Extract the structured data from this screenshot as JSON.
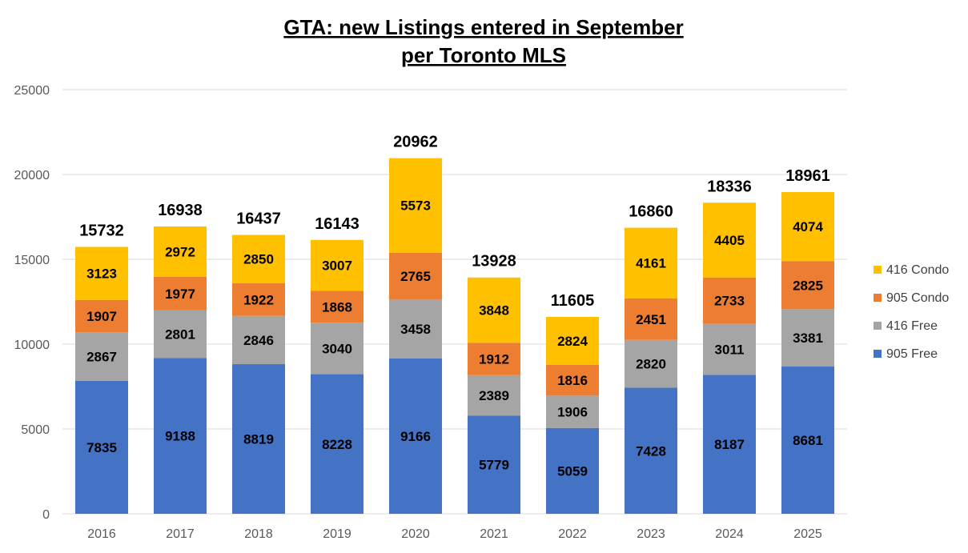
{
  "chart_data": {
    "type": "bar",
    "stacked": true,
    "title": "GTA: new Listings entered in September",
    "subtitle": "per Toronto MLS",
    "xlabel": "",
    "ylabel": "",
    "ylim": [
      0,
      25000
    ],
    "yticks": [
      0,
      5000,
      10000,
      15000,
      20000,
      25000
    ],
    "grid": true,
    "legend_position": "right",
    "categories": [
      "2016",
      "2017",
      "2018",
      "2019",
      "2020",
      "2021",
      "2022",
      "2023",
      "2024",
      "2025"
    ],
    "series": [
      {
        "name": "905 Free",
        "color": "#4472C4",
        "values": [
          7835,
          9188,
          8819,
          8228,
          9166,
          5779,
          5059,
          7428,
          8187,
          8681
        ]
      },
      {
        "name": "416 Free",
        "color": "#A5A5A5",
        "values": [
          2867,
          2801,
          2846,
          3040,
          3458,
          2389,
          1906,
          2820,
          3011,
          3381
        ]
      },
      {
        "name": "905 Condo",
        "color": "#ED7D31",
        "values": [
          1907,
          1977,
          1922,
          1868,
          2765,
          1912,
          1816,
          2451,
          2733,
          2825
        ]
      },
      {
        "name": "416 Condo",
        "color": "#FFC000",
        "values": [
          3123,
          2972,
          2850,
          3007,
          5573,
          3848,
          2824,
          4161,
          4405,
          4074
        ]
      }
    ],
    "totals": [
      15732,
      16938,
      16437,
      16143,
      20962,
      13928,
      11605,
      16860,
      18336,
      18961
    ]
  }
}
